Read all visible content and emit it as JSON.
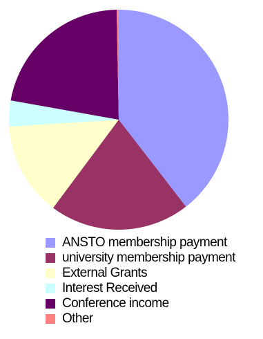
{
  "chart_data": {
    "type": "pie",
    "title": "",
    "start_angle_deg": 0,
    "direction": "clockwise",
    "legend_position": "bottom",
    "slices": [
      {
        "label": "ANSTO membership payment",
        "value": 39.5,
        "color": "#9999ff"
      },
      {
        "label": "university membership payment",
        "value": 20.7,
        "color": "#993366"
      },
      {
        "label": "External Grants",
        "value": 13.8,
        "color": "#ffffcc"
      },
      {
        "label": "Interest Received",
        "value": 3.8,
        "color": "#ccffff"
      },
      {
        "label": "Conference income",
        "value": 21.9,
        "color": "#660066"
      },
      {
        "label": "Other",
        "value": 0.3,
        "color": "#ff8080"
      }
    ]
  }
}
